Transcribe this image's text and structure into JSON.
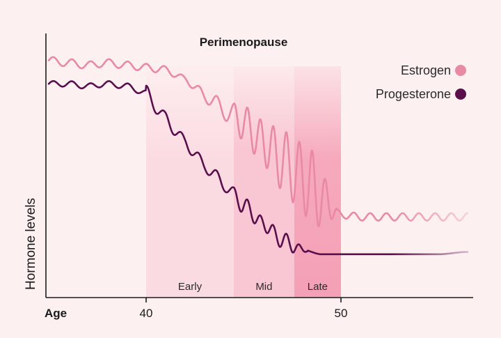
{
  "chart_data": {
    "type": "line",
    "title": "Perimenopause",
    "xlabel": "Age",
    "ylabel": "Hormone levels",
    "xlim": [
      35,
      56.5
    ],
    "ylim": [
      0,
      100
    ],
    "xticks": [
      40,
      50
    ],
    "grid": false,
    "legend_position": "top-right",
    "phases": [
      {
        "label": "Early",
        "start": 40,
        "end": 44.5,
        "color": "#fbdbe2"
      },
      {
        "label": "Mid",
        "start": 44.5,
        "end": 47.6,
        "color": "#f9c7d3"
      },
      {
        "label": "Late",
        "start": 47.6,
        "end": 50,
        "color": "#f6a9bd"
      }
    ],
    "series": [
      {
        "name": "Estrogen",
        "color": "#e98aa4",
        "x": [
          35,
          36,
          37,
          38,
          39,
          40,
          41,
          42,
          43,
          44,
          45,
          46,
          47,
          48,
          49,
          50,
          51,
          52,
          53,
          54,
          55,
          56.5
        ],
        "y": [
          92,
          91,
          90,
          91,
          90,
          89,
          88,
          84,
          77,
          71,
          65,
          57,
          49,
          42,
          33,
          26,
          25,
          25,
          25,
          25,
          25,
          25
        ]
      },
      {
        "name": "Progesterone",
        "color": "#5a0f4d",
        "x": [
          35,
          36,
          37,
          38,
          39,
          40,
          41,
          42,
          43,
          44,
          45,
          46,
          47,
          48,
          49,
          50,
          51,
          52,
          53,
          54,
          55,
          56.5
        ],
        "y": [
          82,
          82,
          81,
          82,
          81,
          78,
          67,
          57,
          47,
          39,
          30,
          22,
          15,
          11,
          9,
          9,
          9,
          9,
          9,
          9,
          9,
          10
        ]
      }
    ]
  }
}
